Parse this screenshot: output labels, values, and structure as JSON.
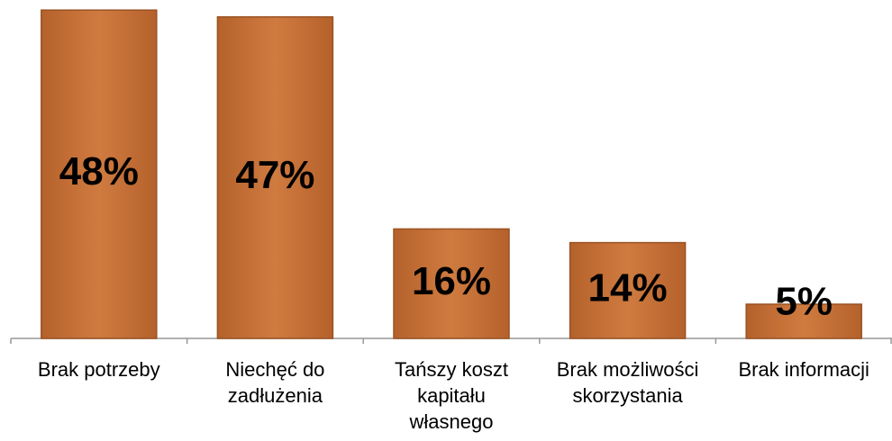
{
  "chart_data": {
    "type": "bar",
    "categories": [
      "Brak potrzeby",
      "Niechęć do zadłużenia",
      "Tańszy koszt kapitału własnego",
      "Brak możliwości skorzystania",
      "Brak informacji"
    ],
    "values": [
      48,
      47,
      16,
      14,
      5
    ],
    "value_labels": [
      "48%",
      "47%",
      "16%",
      "14%",
      "5%"
    ],
    "color": "#c8743a"
  }
}
